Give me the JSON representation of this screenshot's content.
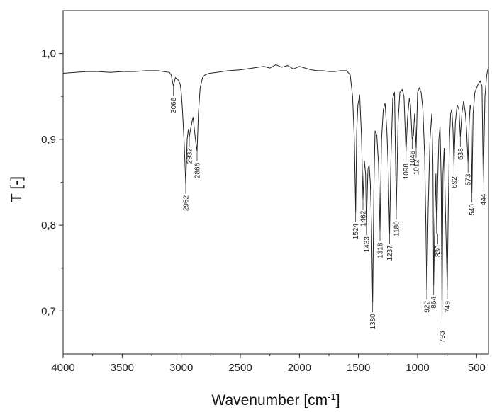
{
  "chart_data": {
    "type": "line",
    "xlabel": "Wavenumber [cm⁻¹]",
    "ylabel": "T [-]",
    "xlim": [
      4000,
      400
    ],
    "ylim": [
      0.65,
      1.05
    ],
    "x_reversed": true,
    "grid": false,
    "xticks": [
      4000,
      3500,
      3000,
      2500,
      2000,
      1500,
      1000,
      500
    ],
    "xtick_labels": [
      "4000",
      "3500",
      "3000",
      "2500",
      "2000",
      "1500",
      "1000",
      "500"
    ],
    "yticks": [
      0.7,
      0.8,
      0.9,
      1.0
    ],
    "ytick_labels": [
      "0,7",
      "0,8",
      "0,9",
      "1,0"
    ],
    "line_color": "#222222",
    "series": [
      {
        "x": [
          4000,
          3900,
          3800,
          3700,
          3600,
          3500,
          3400,
          3300,
          3200,
          3100,
          3085,
          3066,
          3050,
          3030,
          3010,
          3000,
          2990,
          2975,
          2962,
          2950,
          2940,
          2932,
          2920,
          2900,
          2880,
          2866,
          2855,
          2840,
          2820,
          2800,
          2760,
          2700,
          2600,
          2500,
          2400,
          2300,
          2250,
          2200,
          2150,
          2100,
          2050,
          2000,
          1950,
          1900,
          1850,
          1800,
          1750,
          1700,
          1650,
          1600,
          1570,
          1550,
          1535,
          1524,
          1515,
          1505,
          1490,
          1475,
          1462,
          1450,
          1440,
          1433,
          1420,
          1410,
          1400,
          1390,
          1380,
          1370,
          1360,
          1345,
          1330,
          1318,
          1305,
          1290,
          1275,
          1260,
          1250,
          1237,
          1225,
          1210,
          1195,
          1180,
          1165,
          1150,
          1130,
          1115,
          1098,
          1085,
          1070,
          1060,
          1046,
          1035,
          1025,
          1012,
          1000,
          985,
          970,
          955,
          940,
          930,
          922,
          910,
          895,
          880,
          870,
          864,
          855,
          845,
          838,
          830,
          820,
          810,
          800,
          793,
          785,
          775,
          765,
          757,
          749,
          740,
          730,
          720,
          710,
          700,
          692,
          680,
          665,
          650,
          638,
          625,
          610,
          595,
          585,
          573,
          563,
          555,
          548,
          540,
          530,
          515,
          500,
          485,
          470,
          455,
          444,
          430,
          415,
          400
        ],
        "y": [
          0.977,
          0.978,
          0.979,
          0.979,
          0.978,
          0.979,
          0.979,
          0.98,
          0.98,
          0.978,
          0.975,
          0.962,
          0.972,
          0.97,
          0.965,
          0.955,
          0.935,
          0.895,
          0.848,
          0.9,
          0.912,
          0.903,
          0.913,
          0.926,
          0.9,
          0.886,
          0.93,
          0.96,
          0.972,
          0.975,
          0.977,
          0.978,
          0.98,
          0.981,
          0.983,
          0.985,
          0.983,
          0.987,
          0.984,
          0.986,
          0.982,
          0.985,
          0.983,
          0.981,
          0.98,
          0.98,
          0.979,
          0.979,
          0.98,
          0.98,
          0.975,
          0.95,
          0.9,
          0.815,
          0.91,
          0.94,
          0.952,
          0.905,
          0.83,
          0.875,
          0.86,
          0.8,
          0.865,
          0.87,
          0.85,
          0.8,
          0.71,
          0.84,
          0.91,
          0.905,
          0.87,
          0.793,
          0.9,
          0.935,
          0.942,
          0.91,
          0.872,
          0.79,
          0.88,
          0.948,
          0.955,
          0.818,
          0.92,
          0.955,
          0.958,
          0.95,
          0.885,
          0.925,
          0.948,
          0.94,
          0.9,
          0.905,
          0.93,
          0.89,
          0.955,
          0.96,
          0.955,
          0.935,
          0.88,
          0.8,
          0.725,
          0.82,
          0.9,
          0.93,
          0.87,
          0.73,
          0.8,
          0.86,
          0.79,
          0.85,
          0.9,
          0.915,
          0.85,
          0.69,
          0.86,
          0.89,
          0.82,
          0.775,
          0.725,
          0.82,
          0.9,
          0.93,
          0.935,
          0.91,
          0.87,
          0.92,
          0.94,
          0.935,
          0.903,
          0.93,
          0.945,
          0.93,
          0.91,
          0.873,
          0.92,
          0.94,
          0.935,
          0.838,
          0.93,
          0.955,
          0.96,
          0.965,
          0.968,
          0.962,
          0.85,
          0.95,
          0.975,
          0.985
        ]
      }
    ],
    "peak_labels": [
      {
        "text": "3066",
        "x": 3066,
        "y_top": 0.962
      },
      {
        "text": "2962",
        "x": 2962,
        "y_top": 0.848
      },
      {
        "text": "2932",
        "x": 2932,
        "y_top": 0.903
      },
      {
        "text": "2866",
        "x": 2866,
        "y_top": 0.886
      },
      {
        "text": "1524",
        "x": 1524,
        "y_top": 0.815
      },
      {
        "text": "1462",
        "x": 1462,
        "y_top": 0.83
      },
      {
        "text": "1433",
        "x": 1433,
        "y_top": 0.8
      },
      {
        "text": "1380",
        "x": 1380,
        "y_top": 0.71
      },
      {
        "text": "1318",
        "x": 1318,
        "y_top": 0.793
      },
      {
        "text": "1237",
        "x": 1237,
        "y_top": 0.79
      },
      {
        "text": "1180",
        "x": 1180,
        "y_top": 0.818
      },
      {
        "text": "1098",
        "x": 1098,
        "y_top": 0.885
      },
      {
        "text": "1046",
        "x": 1046,
        "y_top": 0.9
      },
      {
        "text": "1012",
        "x": 1012,
        "y_top": 0.89
      },
      {
        "text": "922",
        "x": 922,
        "y_top": 0.725
      },
      {
        "text": "864",
        "x": 864,
        "y_top": 0.73
      },
      {
        "text": "830",
        "x": 830,
        "y_top": 0.79
      },
      {
        "text": "793",
        "x": 793,
        "y_top": 0.69
      },
      {
        "text": "749",
        "x": 749,
        "y_top": 0.725
      },
      {
        "text": "692",
        "x": 692,
        "y_top": 0.87
      },
      {
        "text": "638",
        "x": 638,
        "y_top": 0.903
      },
      {
        "text": "573",
        "x": 573,
        "y_top": 0.873
      },
      {
        "text": "540",
        "x": 540,
        "y_top": 0.838
      },
      {
        "text": "444",
        "x": 444,
        "y_top": 0.85
      }
    ]
  }
}
